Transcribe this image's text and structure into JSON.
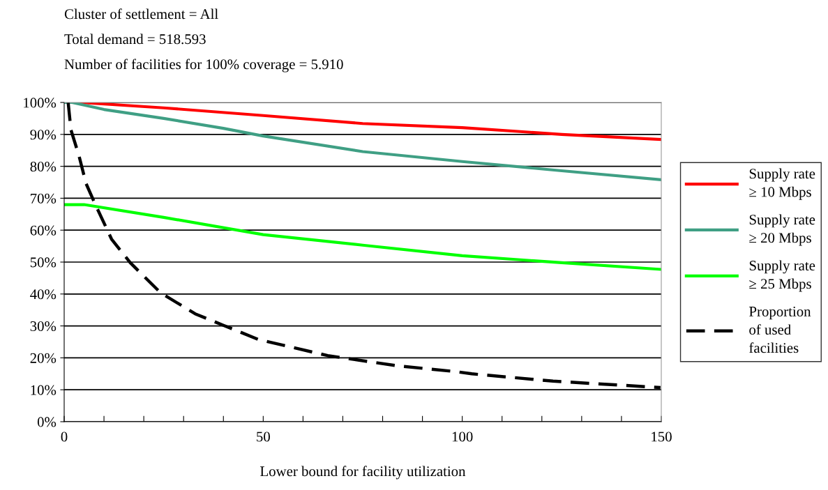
{
  "chart_data": {
    "type": "line",
    "annotations": [
      "Cluster of settlement = All",
      "Total demand = 518.593",
      "Number of facilities for 100% coverage = 5.910"
    ],
    "xlabel": "Lower bound for facility utilization",
    "xlim": [
      0,
      150
    ],
    "xticks": [
      0,
      {
        "value": 10,
        "label": null
      },
      {
        "value": 20,
        "label": null
      },
      {
        "value": 30,
        "label": null
      },
      {
        "value": 40,
        "label": null
      },
      50,
      {
        "value": 60,
        "label": null
      },
      {
        "value": 70,
        "label": null
      },
      {
        "value": 80,
        "label": null
      },
      {
        "value": 90,
        "label": null
      },
      100,
      {
        "value": 110,
        "label": null
      },
      {
        "value": 120,
        "label": null
      },
      {
        "value": 130,
        "label": null
      },
      {
        "value": 140,
        "label": null
      },
      150
    ],
    "ylim": [
      0,
      100
    ],
    "yticks": [
      {
        "value": 0,
        "label": "0%"
      },
      {
        "value": 10,
        "label": "10%"
      },
      {
        "value": 20,
        "label": "20%"
      },
      {
        "value": 30,
        "label": "30%"
      },
      {
        "value": 40,
        "label": "40%"
      },
      {
        "value": 50,
        "label": "50%"
      },
      {
        "value": 60,
        "label": "60%"
      },
      {
        "value": 70,
        "label": "70%"
      },
      {
        "value": 80,
        "label": "80%"
      },
      {
        "value": 90,
        "label": "90%"
      },
      {
        "value": 100,
        "label": "100%"
      }
    ],
    "grid": "y",
    "legend": "right",
    "marker": "none",
    "series": [
      {
        "name": "Supply rate\n≥ 10 Mbps",
        "color": "#ff0000",
        "line_style": "solid",
        "x": [
          0,
          4,
          25,
          50,
          75,
          100,
          125,
          150
        ],
        "values": [
          100,
          100,
          98.3,
          95.9,
          93.4,
          92.1,
          90,
          88.4
        ]
      },
      {
        "name": "Supply rate\n≥ 20 Mbps",
        "color": "#3f9f84",
        "line_style": "solid",
        "x": [
          0,
          2,
          10,
          25,
          40,
          50,
          75,
          100,
          125,
          150
        ],
        "values": [
          100,
          100,
          97.8,
          95,
          91.9,
          89.5,
          84.6,
          81.5,
          78.6,
          75.8
        ]
      },
      {
        "name": "Supply rate\n≥ 25 Mbps",
        "color": "#00ff00",
        "line_style": "solid",
        "x": [
          0,
          5,
          25,
          50,
          75,
          100,
          125,
          150
        ],
        "values": [
          68,
          68,
          64,
          58.6,
          55.3,
          52,
          49.8,
          47.7
        ]
      },
      {
        "name": "Proportion\nof used\nfacilities",
        "color": "#000000",
        "line_style": "dashed",
        "x": [
          1,
          1.7,
          3.7,
          5.5,
          7.8,
          11.9,
          16.6,
          24.2,
          32.9,
          40,
          48.7,
          66.2,
          83.8,
          98.3,
          102.4,
          122.8,
          149.8
        ],
        "values": [
          100,
          91.4,
          83.4,
          74.6,
          68.1,
          57.2,
          49.8,
          40.4,
          33.8,
          30.2,
          25.8,
          20.7,
          17.5,
          15.7,
          15,
          12.7,
          10.7
        ]
      }
    ]
  }
}
